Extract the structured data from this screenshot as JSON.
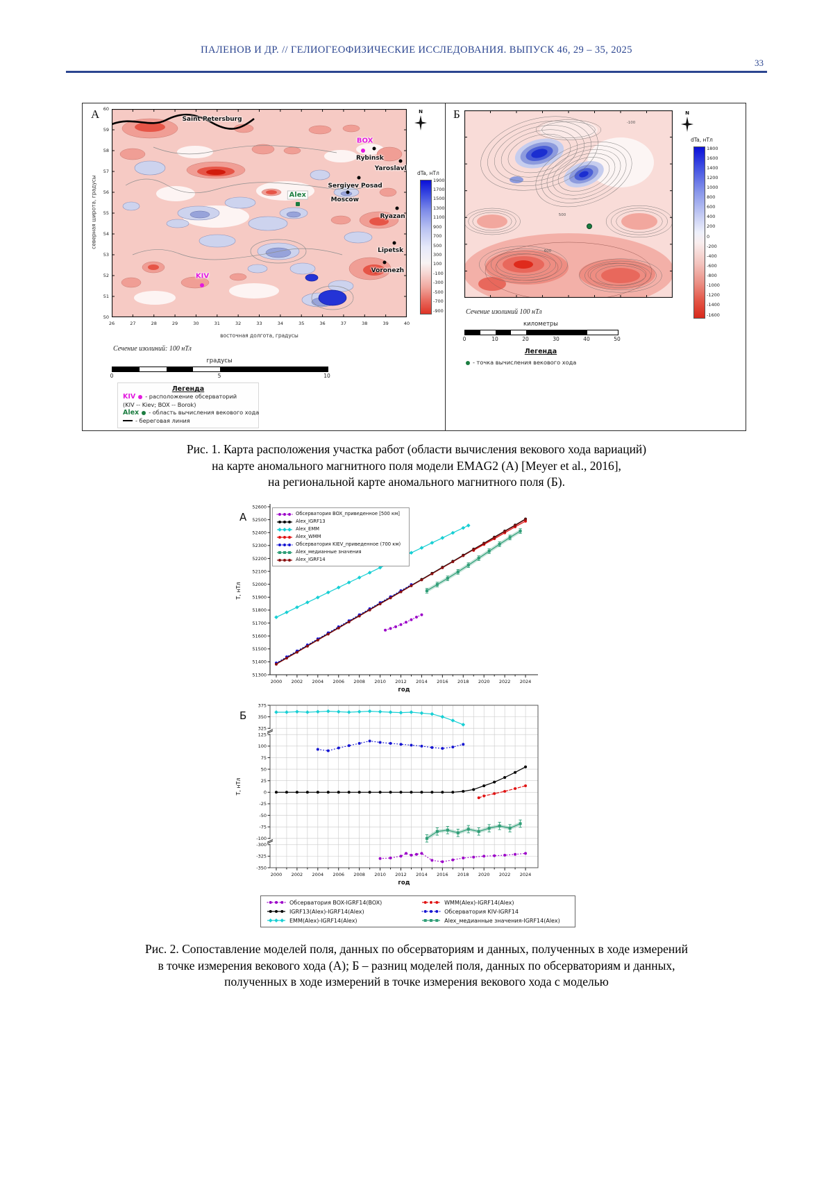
{
  "page": {
    "header": "ПАЛЕНОВ И ДР. // ГЕЛИОГЕОФИЗИЧЕСКИЕ ИССЛЕДОВАНИЯ. ВЫПУСК 46, 29 – 35, 2025",
    "page_number": "33",
    "accent_color": "#2b4590"
  },
  "fig1": {
    "panel_a": {
      "label": "А",
      "north_label": "N",
      "ylabel": "северная широта, градусы",
      "xlabel": "восточная долгота, градусы",
      "yticks": [
        "60",
        "59",
        "58",
        "57",
        "56",
        "55",
        "54",
        "53",
        "52",
        "51",
        "50"
      ],
      "xticks": [
        "26",
        "27",
        "28",
        "29",
        "30",
        "31",
        "32",
        "33",
        "34",
        "35",
        "36",
        "37",
        "38",
        "39",
        "40"
      ],
      "colorbar_title": "dTa, нТл",
      "colorbar_ticks": [
        "1900",
        "1700",
        "1500",
        "1300",
        "1100",
        "900",
        "700",
        "500",
        "300",
        "100",
        "-100",
        "-300",
        "-500",
        "-700",
        "-900"
      ],
      "contour_note": "Сечение  изолиний: 100 нТл",
      "scalebar_title": "градусы",
      "scalebar_ticks": [
        "0",
        "5",
        "10"
      ],
      "legend_title": "Легенда",
      "legend_items": [
        {
          "prefix": "KIV",
          "prefix_color": "#e31adf",
          "marker": "dot",
          "marker_color": "#e31adf",
          "text": "- расположение обсерваторий"
        },
        {
          "prefix": "",
          "prefix_color": "",
          "marker": "none",
          "marker_color": "",
          "text": "(KIV -- Kiev; BOX -- Borok)"
        },
        {
          "prefix": "Alex",
          "prefix_color": "#1b7d40",
          "marker": "dot",
          "marker_color": "#1b7d40",
          "text": "- область вычисления векового хода"
        },
        {
          "prefix": "",
          "prefix_color": "",
          "marker": "line",
          "marker_color": "#000000",
          "text": "- береговая линия"
        }
      ],
      "cities": [
        {
          "name": "Saint Petersburg",
          "fx": 0.34,
          "fy": 0.05
        },
        {
          "name": "Rybinsk",
          "fx": 0.875,
          "fy": 0.235,
          "dot_fx": 0.89,
          "dot_fy": 0.19
        },
        {
          "name": "Yaroslavl",
          "fx": 0.945,
          "fy": 0.285,
          "dot_fx": 0.978,
          "dot_fy": 0.25
        },
        {
          "name": "Sergiyev Posad",
          "fx": 0.825,
          "fy": 0.37,
          "dot_fx": 0.838,
          "dot_fy": 0.33
        },
        {
          "name": "Moscow",
          "fx": 0.79,
          "fy": 0.435,
          "dot_fx": 0.8,
          "dot_fy": 0.4
        },
        {
          "name": "Ryazan",
          "fx": 0.952,
          "fy": 0.515,
          "dot_fx": 0.968,
          "dot_fy": 0.477
        },
        {
          "name": "Lipetsk",
          "fx": 0.945,
          "fy": 0.68,
          "dot_fx": 0.957,
          "dot_fy": 0.642
        },
        {
          "name": "Voronezh",
          "fx": 0.935,
          "fy": 0.775,
          "dot_fx": 0.925,
          "dot_fy": 0.735
        }
      ],
      "stations": [
        {
          "name": "BOX",
          "fx": 0.858,
          "fy": 0.152,
          "dot_fx": 0.852,
          "dot_fy": 0.2,
          "color": "#e31adf",
          "square": false,
          "boxed": false
        },
        {
          "name": "KIV",
          "fx": 0.307,
          "fy": 0.802,
          "dot_fx": 0.307,
          "dot_fy": 0.848,
          "color": "#e31adf",
          "square": false,
          "boxed": false
        },
        {
          "name": "Alex",
          "fx": 0.63,
          "fy": 0.412,
          "dot_fx": 0.63,
          "dot_fy": 0.458,
          "color": "#1b7d40",
          "square": true,
          "boxed": true
        }
      ]
    },
    "panel_b": {
      "label": "Б",
      "north_label": "N",
      "colorbar_title": "dTa, нТл",
      "colorbar_ticks": [
        "1800",
        "1600",
        "1400",
        "1200",
        "1000",
        "800",
        "600",
        "400",
        "200",
        "0",
        "-200",
        "-400",
        "-600",
        "-800",
        "-1000",
        "-1200",
        "-1400",
        "-1600"
      ],
      "contour_note": "Сечение изолиний 100 нТл",
      "scalebar_title": "километры",
      "scalebar_ticks": [
        "0",
        "10",
        "20",
        "30",
        "40",
        "50"
      ],
      "legend_title": "Легенда",
      "legend_item": "- точка вычисления векового хода",
      "point_color": "#1b7d40",
      "point": {
        "fx": 0.6,
        "fy": 0.62
      },
      "contour_labels": [
        {
          "text": "-100",
          "fx": 0.8,
          "fy": 0.065
        },
        {
          "text": "500",
          "fx": 0.47,
          "fy": 0.56
        },
        {
          "text": "600",
          "fx": 0.4,
          "fy": 0.75
        }
      ]
    },
    "caption_lines": [
      "Рис. 1. Карта расположения участка работ (области вычисления векового хода вариаций)",
      "на карте аномального магнитного поля модели EMAG2 (А) [Meyer et al., 2016],",
      "на региональной карте аномального магнитного поля (Б)."
    ]
  },
  "fig2": {
    "caption_lines": [
      "Рис. 2. Сопоставление моделей поля, данных по обсерваториям и данных, полученных в ходе измерений",
      "в точке измерения векового хода (А); Б – разниц моделей поля, данных по обсерваториям и данных,",
      "полученных в ходе измерений в точке измерения векового хода с моделью"
    ]
  },
  "chart_data": [
    {
      "type": "line",
      "panel": "А",
      "xlabel": "год",
      "ylabel": "Т, нТл",
      "x_min": 1999.4,
      "x_max": 2025.2,
      "xticks": [
        2000,
        2002,
        2004,
        2006,
        2008,
        2010,
        2012,
        2014,
        2016,
        2018,
        2020,
        2022,
        2024
      ],
      "y_segments": [
        {
          "min": 51300,
          "max": 52600
        }
      ],
      "yticks": [
        52600,
        52500,
        52400,
        52300,
        52200,
        52100,
        52000,
        51900,
        51800,
        51700,
        51600,
        51500,
        51400,
        51300
      ],
      "grid": false,
      "legend_position": "top-left",
      "series": [
        {
          "name": "Обсерватория BOX_приведенное [500 км]",
          "color": "#9b00c8",
          "line": "dotted",
          "marker": "circle",
          "x": [
            2010.5,
            2011,
            2011.5,
            2012,
            2012.5,
            2013,
            2013.5,
            2014
          ],
          "y": [
            51645,
            51658,
            51671,
            51688,
            51706,
            51726,
            51746,
            51764
          ]
        },
        {
          "name": "Alex_IGRF13",
          "color": "#000000",
          "line": "solid",
          "marker": "circle",
          "x": [
            2000,
            2001,
            2002,
            2003,
            2004,
            2005,
            2006,
            2007,
            2008,
            2009,
            2010,
            2011,
            2012,
            2013,
            2014,
            2015,
            2016,
            2017,
            2018,
            2019,
            2020,
            2021,
            2022,
            2023,
            2024
          ],
          "y": [
            51385,
            51432,
            51478,
            51525,
            51572,
            51618,
            51665,
            51712,
            51758,
            51805,
            51852,
            51898,
            51945,
            51992,
            52038,
            52085,
            52132,
            52178,
            52225,
            52272,
            52318,
            52365,
            52412,
            52458,
            52505
          ]
        },
        {
          "name": "Alex_EMM",
          "color": "#18cfd4",
          "line": "solid",
          "marker": "diamond",
          "x": [
            2000,
            2001,
            2002,
            2003,
            2004,
            2005,
            2006,
            2007,
            2008,
            2009,
            2010,
            2011,
            2012,
            2013,
            2014,
            2015,
            2016,
            2017,
            2018,
            2018.5
          ],
          "y": [
            51745,
            51783,
            51822,
            51860,
            51898,
            51937,
            51975,
            52014,
            52052,
            52090,
            52129,
            52167,
            52206,
            52244,
            52282,
            52321,
            52359,
            52398,
            52436,
            52455
          ]
        },
        {
          "name": "Alex_WMM",
          "color": "#e01414",
          "line": "solid",
          "marker": "circle",
          "x": [
            2019,
            2020,
            2021,
            2022,
            2023,
            2024
          ],
          "y": [
            52262,
            52308,
            52352,
            52398,
            52444,
            52488
          ]
        },
        {
          "name": "Обсерватория KIEV_приведенное (700 км)",
          "color": "#1515d2",
          "line": "dotted",
          "marker": "circle",
          "x": [
            2000,
            2001,
            2002,
            2003,
            2004,
            2005,
            2006,
            2007,
            2008,
            2009,
            2010,
            2011,
            2012,
            2013
          ],
          "y": [
            51391,
            51438,
            51484,
            51531,
            51578,
            51624,
            51671,
            51718,
            51764,
            51811,
            51858,
            51904,
            51951,
            51998
          ]
        },
        {
          "name": "Alex_медианные значения",
          "color": "#2f9e77",
          "line": "solid",
          "marker": "square",
          "yerr": 18,
          "x": [
            2014.5,
            2015.5,
            2016.5,
            2017.5,
            2018.5,
            2019.5,
            2020.5,
            2021.5,
            2022.5,
            2023.5
          ],
          "y": [
            51950,
            51998,
            52046,
            52096,
            52148,
            52202,
            52256,
            52310,
            52362,
            52412
          ]
        },
        {
          "name": "Alex_IGRF14",
          "color": "#8a1010",
          "line": "solid",
          "marker": "circle",
          "x": [
            2000,
            2001,
            2002,
            2003,
            2004,
            2005,
            2006,
            2007,
            2008,
            2009,
            2010,
            2011,
            2012,
            2013,
            2014,
            2015,
            2016,
            2017,
            2018,
            2019,
            2020,
            2021,
            2022,
            2023,
            2024
          ],
          "y": [
            51381,
            51428,
            51474,
            51521,
            51568,
            51614,
            51661,
            51708,
            51754,
            51801,
            51848,
            51894,
            51941,
            51988,
            52034,
            52081,
            52128,
            52174,
            52221,
            52268,
            52314,
            52361,
            52408,
            52454,
            52501
          ]
        }
      ]
    },
    {
      "type": "line",
      "panel": "Б",
      "xlabel": "год",
      "ylabel": "Т, нТл",
      "x_min": 1999.4,
      "x_max": 2025.2,
      "xticks": [
        2000,
        2002,
        2004,
        2006,
        2008,
        2010,
        2012,
        2014,
        2016,
        2018,
        2020,
        2022,
        2024
      ],
      "y_segments": [
        {
          "min": 325,
          "max": 375
        },
        {
          "min": -100,
          "max": 125
        },
        {
          "min": -350,
          "max": -300
        }
      ],
      "yticks": [
        375,
        350,
        325,
        125,
        100,
        75,
        50,
        25,
        0,
        -25,
        -50,
        -75,
        -100,
        -300,
        -325,
        -350
      ],
      "grid": true,
      "legend_position": "bottom-box",
      "series": [
        {
          "name": "Обсерватория BOX-IGRF14(BOX)",
          "color": "#9b00c8",
          "line": "dotted",
          "marker": "circle",
          "x": [
            2010,
            2011,
            2012,
            2012.5,
            2013,
            2013.5,
            2014,
            2015,
            2016,
            2017,
            2018,
            2019,
            2020,
            2021,
            2022,
            2023,
            2024
          ],
          "y": [
            -330,
            -329,
            -325,
            -319,
            -323,
            -321,
            -319,
            -334,
            -337,
            -333,
            -329,
            -327,
            -325,
            -324,
            -323,
            -321,
            -319
          ]
        },
        {
          "name": "WMM(Alex)-IGRF14(Alex)",
          "color": "#e01414",
          "line": "dashed",
          "marker": "circle",
          "x": [
            2019.5,
            2020,
            2021,
            2022,
            2023,
            2024
          ],
          "y": [
            -12,
            -8,
            -3,
            2,
            8,
            14
          ]
        },
        {
          "name": "IGRF13(Alex)-IGRF14(Alex)",
          "color": "#000000",
          "line": "solid",
          "marker": "circle",
          "x": [
            2000,
            2001,
            2002,
            2003,
            2004,
            2005,
            2006,
            2007,
            2008,
            2009,
            2010,
            2011,
            2012,
            2013,
            2014,
            2015,
            2016,
            2017,
            2018,
            2019,
            2020,
            2021,
            2022,
            2023,
            2024
          ],
          "y": [
            0,
            0,
            0,
            0,
            0,
            0,
            0,
            0,
            0,
            0,
            0,
            0,
            0,
            0,
            0,
            0,
            0,
            0,
            2,
            6,
            14,
            22,
            32,
            43,
            55
          ]
        },
        {
          "name": "Обсерватория KIV-IGRF14",
          "color": "#1515d2",
          "line": "dotted",
          "marker": "circle",
          "x": [
            2004,
            2005,
            2006,
            2007,
            2008,
            2009,
            2010,
            2011,
            2012,
            2013,
            2014,
            2015,
            2016,
            2017,
            2018
          ],
          "y": [
            93,
            90,
            96,
            101,
            106,
            111,
            108,
            106,
            104,
            102,
            100,
            97,
            95,
            98,
            104
          ]
        },
        {
          "name": "EMM(Alex)-IGRF14(Alex)",
          "color": "#18cfd4",
          "line": "solid",
          "marker": "diamond",
          "x": [
            2000,
            2001,
            2002,
            2003,
            2004,
            2005,
            2006,
            2007,
            2008,
            2009,
            2010,
            2011,
            2012,
            2013,
            2014,
            2015,
            2016,
            2017,
            2018
          ],
          "y": [
            360,
            360,
            361,
            360,
            361,
            362,
            361,
            360,
            361,
            362,
            361,
            360,
            359,
            360,
            358,
            356,
            350,
            342,
            333
          ]
        },
        {
          "name": "Alex_медианные значения-IGRF14(Alex)",
          "color": "#2f9e77",
          "line": "solid",
          "marker": "square",
          "yerr": 8,
          "x": [
            2014.5,
            2015.5,
            2016.5,
            2017.5,
            2018.5,
            2019.5,
            2020.5,
            2021.5,
            2022.5,
            2023.5
          ],
          "y": [
            -100,
            -85,
            -82,
            -88,
            -80,
            -85,
            -78,
            -73,
            -78,
            -68
          ]
        }
      ]
    }
  ]
}
